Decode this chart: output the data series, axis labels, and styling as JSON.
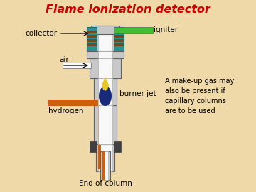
{
  "title": "Flame ionization detector",
  "title_color": "#cc0000",
  "bg_color": "#f0d9a8",
  "labels": {
    "collector": "collector",
    "igniter": "igniter",
    "air": "air",
    "burner_jet": "burner jet",
    "hydrogen": "hydrogen",
    "end_of_column": "End of column",
    "makeup": "A make-up gas may\nalso be present if\ncapillary columns\nare to be used"
  },
  "colors": {
    "teal": "#2a9090",
    "teal_dark": "#1a7070",
    "brown": "#7a4010",
    "light_gray": "#c8c8c8",
    "mid_gray": "#b0b0b0",
    "white": "#f8f8f8",
    "orange": "#d86010",
    "dark_blue": "#1a2a70",
    "dark_blue2": "#253580",
    "yellow": "#e8d020",
    "green": "#40c030",
    "dark_gray": "#606060",
    "darker_gray": "#404040",
    "black": "#000000",
    "flame_yellow": "#e8c820",
    "flame_blue": "#1a2a7a",
    "orange_pipe": "#cc6010"
  }
}
